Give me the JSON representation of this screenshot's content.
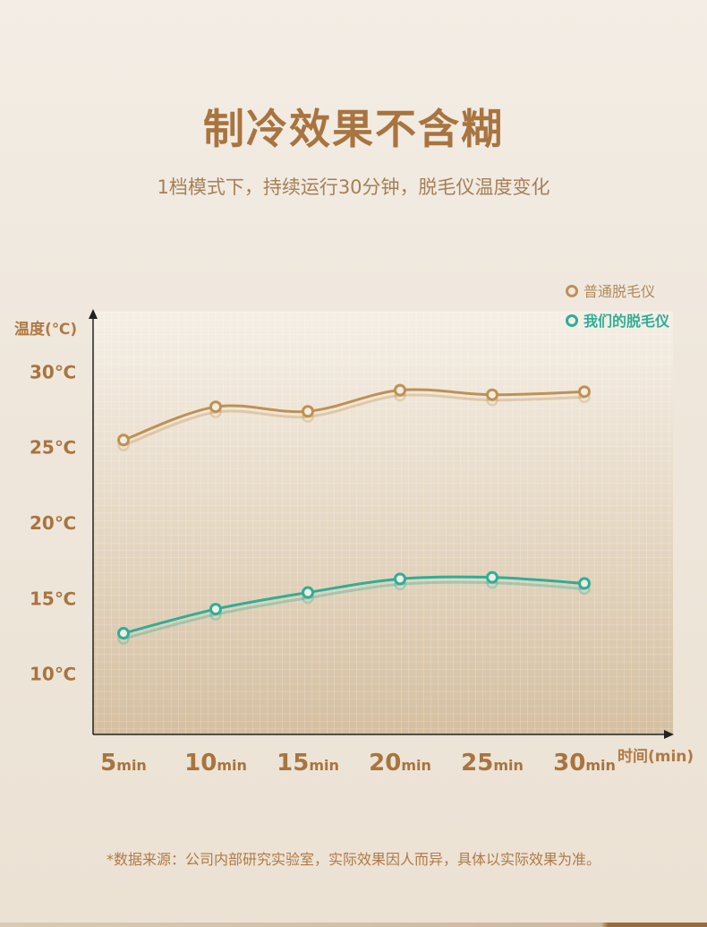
{
  "header": {
    "title": "制冷效果不含糊",
    "subtitle": "1档模式下，持续运行30分钟，脱毛仪温度变化"
  },
  "footer": {
    "note": "*数据来源：公司内部研究实验室，实际效果因人而异，具体以实际效果为准。"
  },
  "colors": {
    "ordinary": "#bf9152",
    "ours": "#2fae96",
    "axis_label": "#b07a45",
    "tick": "#a8743f"
  },
  "chart_data": {
    "type": "line",
    "ylabel": "温度(℃)",
    "xlabel": "时间(min)",
    "x": [
      "5min",
      "10min",
      "15min",
      "20min",
      "25min",
      "30min"
    ],
    "x_ticks": [
      {
        "num": "5",
        "unit": "min"
      },
      {
        "num": "10",
        "unit": "min"
      },
      {
        "num": "15",
        "unit": "min"
      },
      {
        "num": "20",
        "unit": "min"
      },
      {
        "num": "25",
        "unit": "min"
      },
      {
        "num": "30",
        "unit": "min"
      }
    ],
    "y_ticks": [
      "10℃",
      "15℃",
      "20℃",
      "25℃",
      "30℃"
    ],
    "y_tick_values": [
      10,
      15,
      20,
      25,
      30
    ],
    "ylim": [
      6,
      34
    ],
    "grid": true,
    "legend_position": "top-right",
    "series": [
      {
        "name": "普通脱毛仪",
        "values": [
          25.5,
          27.7,
          27.4,
          28.8,
          28.5,
          28.7
        ],
        "color": "#bf9152"
      },
      {
        "name": "我们的脱毛仪",
        "values": [
          12.7,
          14.3,
          15.4,
          16.3,
          16.4,
          16.0
        ],
        "color": "#2fae96"
      }
    ]
  }
}
